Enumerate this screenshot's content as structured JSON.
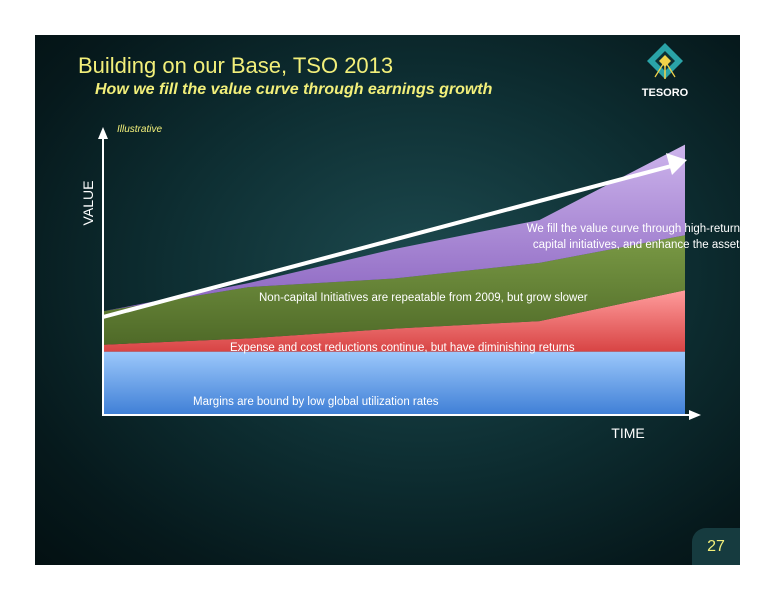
{
  "slide": {
    "title": "Building on our Base, TSO 2013",
    "subtitle": "How we fill the value curve through earnings growth",
    "logo_text": "TESORO",
    "page_number": "27"
  },
  "colors": {
    "background": "#0e2f33",
    "title": "#f2ef7a",
    "margins_band": "#6aa6ee",
    "expense_band": "#e25a5a",
    "noncapital_band": "#66843a",
    "capital_band": "#b696d8"
  },
  "chart_data": {
    "type": "area",
    "annotation": "Illustrative",
    "xlabel": "TIME",
    "ylabel": "VALUE",
    "x": [
      0,
      0.25,
      0.5,
      0.75,
      1.0
    ],
    "ylim": [
      0,
      100
    ],
    "series": [
      {
        "label": "Margins are bound by low global utilization rates",
        "values": [
          22,
          22,
          22,
          22,
          22
        ],
        "color": "#6aa6ee"
      },
      {
        "label": "Expense and cost reductions continue, but have diminishing returns",
        "values": [
          2.4,
          4.6,
          8.0,
          10.6,
          21.3
        ],
        "color": "#e25a5a"
      },
      {
        "label": "Non-capital Initiatives are repeatable from 2009, but grow slower",
        "values": [
          11.6,
          17.8,
          17.4,
          20.2,
          19.1
        ],
        "color": "#66843a"
      },
      {
        "label": "We fill the value curve through high-return capital initiatives, and enhance the assets",
        "values": [
          0,
          1.4,
          10.2,
          14.9,
          31.5
        ],
        "color": "#b696d8"
      }
    ]
  }
}
